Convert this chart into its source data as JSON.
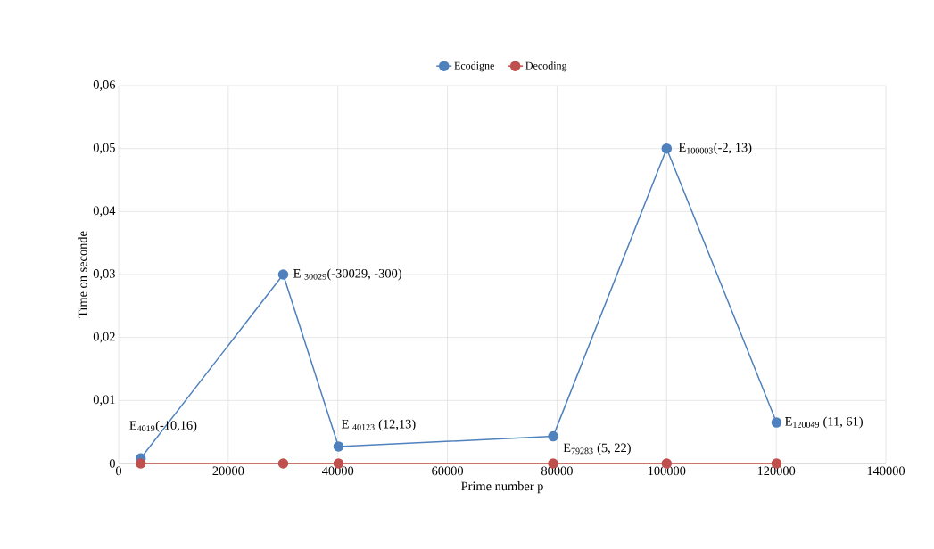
{
  "chart_data": {
    "type": "line",
    "xlabel": "Prime number p",
    "ylabel": "Time on seconde",
    "x": [
      4019,
      30029,
      40123,
      79283,
      100003,
      120049
    ],
    "series": [
      {
        "name": "Ecodigne",
        "color": "#4f81bd",
        "values": [
          0.0008,
          0.03,
          0.0027,
          0.0043,
          0.05,
          0.0065
        ]
      },
      {
        "name": "Decoding",
        "color": "#c0504d",
        "values": [
          0,
          0,
          0,
          0,
          0,
          0
        ]
      }
    ],
    "xlim": [
      0,
      140000
    ],
    "xticks": [
      0,
      20000,
      40000,
      60000,
      80000,
      100000,
      120000,
      140000
    ],
    "ylim": [
      0,
      0.06
    ],
    "yticks": [
      0,
      {
        "value": 0.01,
        "label": "0,01"
      },
      {
        "value": 0.02,
        "label": "0,02"
      },
      {
        "value": 0.03,
        "label": "0,03"
      },
      {
        "value": 0.04,
        "label": "0,04"
      },
      {
        "value": 0.05,
        "label": "0,05"
      },
      {
        "value": 0.06,
        "label": "0,06"
      }
    ],
    "annotations": [
      {
        "text": "E$_{4019}$(-10,16)",
        "x": 4019,
        "y": 0.0008
      },
      {
        "text": "E $_{30029}$(-30029, -300)",
        "x": 30029,
        "y": 0.03
      },
      {
        "text": "E $_{40123}$ (12,13)",
        "x": 40123,
        "y": 0.0027
      },
      {
        "text": "E$_{79283}$ (5, 22)",
        "x": 79283,
        "y": 0.0043
      },
      {
        "text": "E$_{100003}$(-2, 13)",
        "x": 100003,
        "y": 0.05
      },
      {
        "text": "E$_{120049}$ (11, 61)",
        "x": 120049,
        "y": 0.0065
      }
    ],
    "grid": true,
    "legend": "top",
    "marker": "circle",
    "line_style": "solid"
  }
}
